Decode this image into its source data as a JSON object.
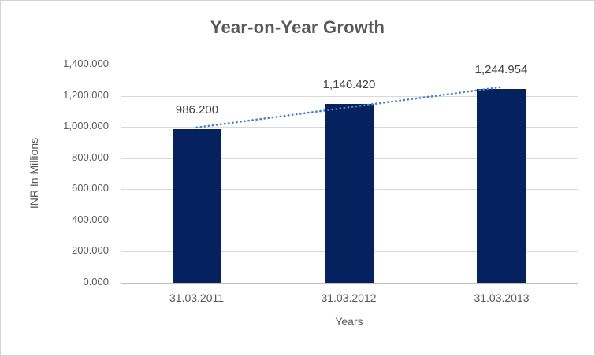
{
  "chart_data": {
    "type": "bar",
    "title": "Year-on-Year Growth",
    "categories": [
      "31.03.2011",
      "31.03.2012",
      "31.03.2013"
    ],
    "values": [
      986.2,
      1146.42,
      1244.954
    ],
    "data_labels": [
      "986.200",
      "1,146.420",
      "1,244.954"
    ],
    "xlabel": "Years",
    "ylabel": "INR In Millions",
    "ylim": [
      0,
      1400
    ],
    "ytick_step": 200,
    "ytick_labels": [
      "0.000",
      "200.000",
      "400.000",
      "600.000",
      "800.000",
      "1,000.000",
      "1,200.000",
      "1,400.000"
    ],
    "grid": true,
    "legend": "none",
    "trendline": {
      "type": "linear",
      "style": "dotted"
    },
    "colors": {
      "bar": "#05225f",
      "trendline": "#4a80c4",
      "gridline": "#d9d9d9",
      "axis_line": "#bfbfbf",
      "title_text": "#595959",
      "axis_text": "#595959",
      "data_label_text": "#404040",
      "border": "#d3d3d3",
      "background": "#ffffff"
    }
  }
}
